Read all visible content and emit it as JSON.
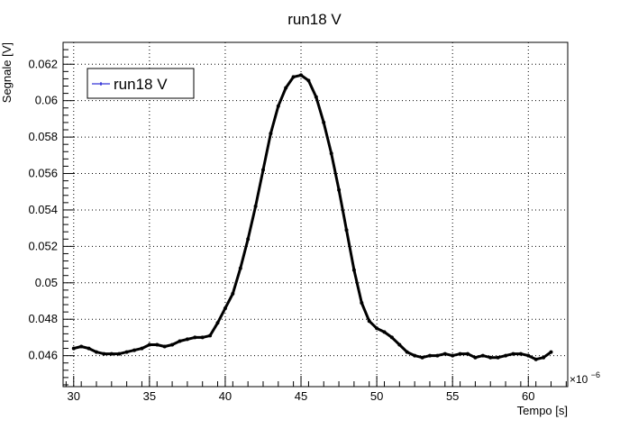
{
  "chart_data": {
    "type": "scatter",
    "title": "run18 V",
    "xlabel": "Tempo [s]",
    "ylabel": "Segnale [V]",
    "x_exponent_label": "×10",
    "x_exponent_power": "−6",
    "x_scale_factor": 1e-06,
    "xlim": [
      29.3,
      62.6
    ],
    "ylim": [
      0.0443,
      0.0632
    ],
    "x_ticks": [
      30,
      35,
      40,
      45,
      50,
      55,
      60
    ],
    "x_tick_labels": [
      "30",
      "35",
      "40",
      "45",
      "50",
      "55",
      "60"
    ],
    "y_ticks": [
      0.046,
      0.048,
      0.05,
      0.052,
      0.054,
      0.056,
      0.058,
      0.06,
      0.062
    ],
    "y_tick_labels": [
      "0.046",
      "0.048",
      "0.05",
      "0.052",
      "0.054",
      "0.056",
      "0.058",
      "0.06",
      "0.062"
    ],
    "grid": true,
    "legend_position": "top-left",
    "series": [
      {
        "name": "run18 V",
        "color": "#000000",
        "legend_color": "#0000cc",
        "x": [
          30.0,
          30.5,
          31.0,
          31.5,
          32.0,
          32.5,
          33.0,
          33.5,
          34.0,
          34.5,
          35.0,
          35.5,
          36.0,
          36.5,
          37.0,
          37.5,
          38.0,
          38.5,
          39.0,
          39.5,
          40.0,
          40.5,
          41.0,
          41.5,
          42.0,
          42.5,
          43.0,
          43.5,
          44.0,
          44.5,
          45.0,
          45.5,
          46.0,
          46.5,
          47.0,
          47.5,
          48.0,
          48.5,
          49.0,
          49.5,
          50.0,
          50.5,
          51.0,
          51.5,
          52.0,
          52.5,
          53.0,
          53.5,
          54.0,
          54.5,
          55.0,
          55.5,
          56.0,
          56.5,
          57.0,
          57.5,
          58.0,
          58.5,
          59.0,
          59.5,
          60.0,
          60.5,
          61.0,
          61.5
        ],
        "y": [
          0.0464,
          0.0465,
          0.0464,
          0.0462,
          0.0461,
          0.0461,
          0.0461,
          0.0462,
          0.0463,
          0.0464,
          0.0466,
          0.0466,
          0.0465,
          0.0466,
          0.0468,
          0.0469,
          0.047,
          0.047,
          0.0471,
          0.0478,
          0.0486,
          0.0494,
          0.0508,
          0.0524,
          0.0542,
          0.0562,
          0.0582,
          0.0597,
          0.0607,
          0.0613,
          0.0614,
          0.0611,
          0.0602,
          0.0588,
          0.0571,
          0.0551,
          0.0529,
          0.0507,
          0.0489,
          0.0479,
          0.0475,
          0.0473,
          0.047,
          0.0466,
          0.0462,
          0.046,
          0.0459,
          0.046,
          0.046,
          0.0461,
          0.046,
          0.0461,
          0.0461,
          0.0459,
          0.046,
          0.0459,
          0.0459,
          0.046,
          0.0461,
          0.0461,
          0.046,
          0.0458,
          0.0459,
          0.0462
        ]
      }
    ]
  }
}
